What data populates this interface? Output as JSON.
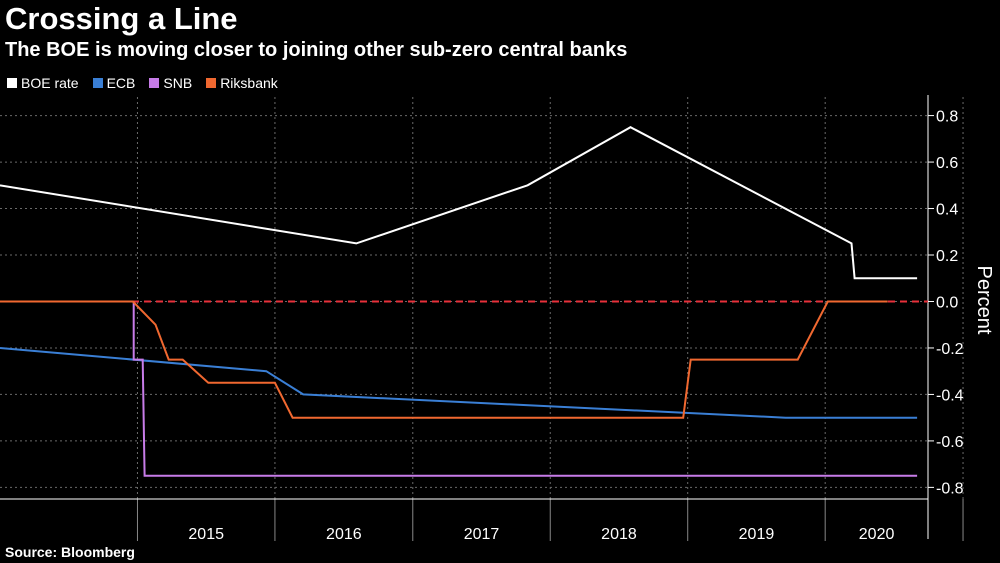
{
  "chart_data": {
    "type": "line",
    "title": "Crossing a Line",
    "subtitle": "The BOE is moving closer to joining other sub-zero central banks",
    "ylabel": "Percent",
    "xlabel": "",
    "source": "Source: Bloomberg",
    "ylim": [
      -0.85,
      0.88
    ],
    "xlim": [
      "2014-01-01",
      "2020-09-30"
    ],
    "y_ticks": [
      "0.8",
      "0.6",
      "0.4",
      "0.2",
      "0.0",
      "-0.2",
      "-0.4",
      "-0.6",
      "-0.8"
    ],
    "x_ticks": [
      "2015",
      "2016",
      "2017",
      "2018",
      "2019",
      "2020"
    ],
    "grid": true,
    "legend_position": "top-left",
    "reference_line": {
      "y": 0.0,
      "color": "#e8303a",
      "style": "dashed"
    },
    "series": [
      {
        "name": "BOE rate",
        "color": "#ffffff",
        "points": [
          [
            "2014-01-01",
            0.5
          ],
          [
            "2016-08-04",
            0.25
          ],
          [
            "2017-11-02",
            0.5
          ],
          [
            "2018-08-02",
            0.75
          ],
          [
            "2020-03-11",
            0.25
          ],
          [
            "2020-03-19",
            0.1
          ],
          [
            "2020-09-01",
            0.1
          ]
        ]
      },
      {
        "name": "ECB",
        "color": "#3a7fd5",
        "points": [
          [
            "2014-01-01",
            -0.2
          ],
          [
            "2015-12-09",
            -0.3
          ],
          [
            "2016-03-16",
            -0.4
          ],
          [
            "2019-09-18",
            -0.5
          ],
          [
            "2020-09-01",
            -0.5
          ]
        ]
      },
      {
        "name": "SNB",
        "color": "#c77ce8",
        "points": [
          [
            "2014-12-22",
            0.0
          ],
          [
            "2014-12-22",
            -0.25
          ],
          [
            "2015-01-15",
            -0.25
          ],
          [
            "2015-01-20",
            -0.75
          ],
          [
            "2020-09-01",
            -0.75
          ]
        ]
      },
      {
        "name": "Riksbank",
        "color": "#f06830",
        "points": [
          [
            "2014-01-01",
            0.0
          ],
          [
            "2014-12-20",
            0.0
          ],
          [
            "2015-02-18",
            -0.1
          ],
          [
            "2015-03-25",
            -0.25
          ],
          [
            "2015-05-01",
            -0.25
          ],
          [
            "2015-07-08",
            -0.35
          ],
          [
            "2016-01-01",
            -0.35
          ],
          [
            "2016-02-17",
            -0.5
          ],
          [
            "2018-12-20",
            -0.5
          ],
          [
            "2019-01-09",
            -0.25
          ],
          [
            "2019-10-20",
            -0.25
          ],
          [
            "2020-01-08",
            0.0
          ],
          [
            "2020-06-15",
            0.0
          ]
        ]
      }
    ]
  }
}
